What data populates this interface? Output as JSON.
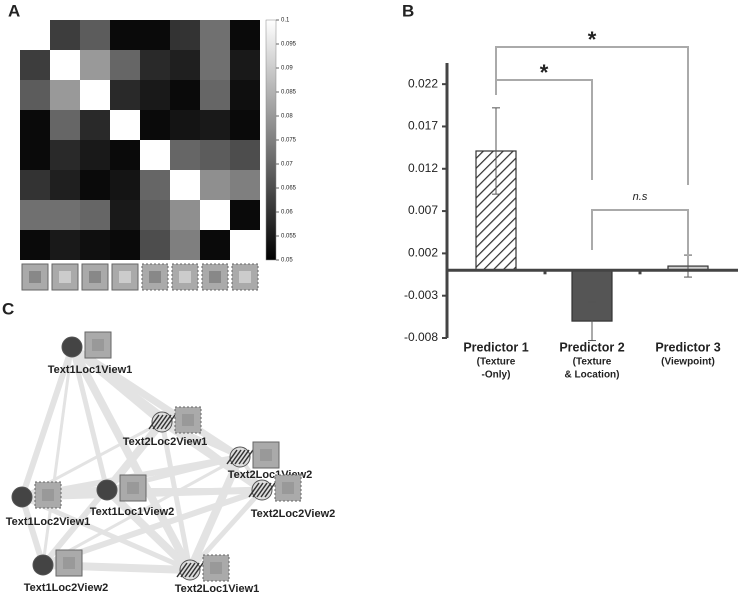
{
  "chart_data": [
    {
      "type": "heatmap",
      "panel_label": "A",
      "values": [
        [
          0.1,
          0.062,
          0.068,
          0.052,
          0.052,
          0.06,
          0.072,
          0.052
        ],
        [
          0.062,
          0.1,
          0.08,
          0.07,
          0.058,
          0.056,
          0.072,
          0.055
        ],
        [
          0.068,
          0.08,
          0.1,
          0.058,
          0.055,
          0.052,
          0.07,
          0.053
        ],
        [
          0.052,
          0.07,
          0.058,
          0.1,
          0.052,
          0.054,
          0.055,
          0.052
        ],
        [
          0.052,
          0.058,
          0.055,
          0.052,
          0.1,
          0.07,
          0.068,
          0.065
        ],
        [
          0.06,
          0.056,
          0.052,
          0.054,
          0.07,
          0.1,
          0.078,
          0.075
        ],
        [
          0.072,
          0.072,
          0.07,
          0.055,
          0.068,
          0.078,
          0.1,
          0.052
        ],
        [
          0.052,
          0.055,
          0.053,
          0.052,
          0.065,
          0.075,
          0.052,
          0.1
        ]
      ],
      "clim": [
        0.05,
        0.1
      ],
      "cticks": [
        0.1,
        0.095,
        0.09,
        0.085,
        0.08,
        0.075,
        0.07,
        0.065,
        0.06,
        0.055,
        0.05
      ]
    },
    {
      "type": "bar",
      "panel_label": "B",
      "categories": [
        "Predictor 1",
        "Predictor 2",
        "Predictor 3"
      ],
      "category_notes": [
        [
          "(Texture",
          "-Only)"
        ],
        [
          "(Texture",
          "& Location)"
        ],
        [
          "(Viewpoint)"
        ]
      ],
      "values": [
        0.0141,
        -0.006,
        0.0005
      ],
      "errors": [
        0.0051,
        0.0023,
        0.0013
      ],
      "colors": [
        "hatch",
        "#555555",
        "#cfcfcf"
      ],
      "ylim": [
        -0.008,
        0.0245
      ],
      "yticks": [
        0.022,
        0.017,
        0.012,
        0.007,
        0.002,
        -0.003,
        -0.008
      ],
      "annotations": [
        {
          "text": "*",
          "from": 0,
          "to": 2
        },
        {
          "text": "*",
          "from": 0,
          "to": 1
        },
        {
          "text": "n.s",
          "from": 1,
          "to": 2
        }
      ]
    },
    {
      "type": "network",
      "panel_label": "C",
      "nodes": [
        "Text1Loc1View1",
        "Text2Loc2View1",
        "Text2Loc1View2",
        "Text1Loc2View1",
        "Text1Loc1View2",
        "Text2Loc2View2",
        "Text1Loc2View2",
        "Text2Loc1View1"
      ]
    }
  ]
}
